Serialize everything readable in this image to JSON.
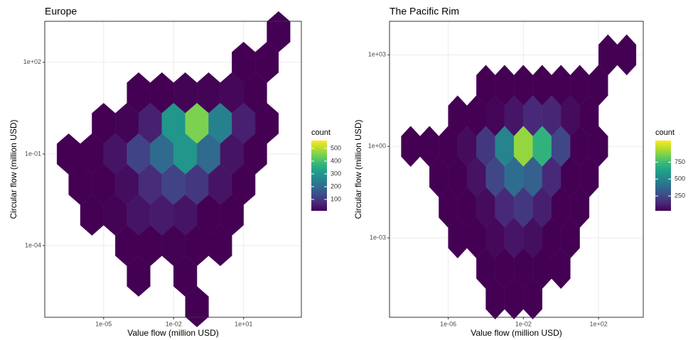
{
  "chart_data": [
    {
      "type": "hexbin",
      "title": "Europe",
      "x_label": "Value flow (million USD)",
      "y_label": "Circular flow (million USD)",
      "xscale": "log",
      "yscale": "log",
      "grid": true,
      "color_scale": "viridis",
      "xlim": [
        3e-08,
        3000
      ],
      "ylim": [
        4.5e-07,
        2200
      ],
      "xticks": [
        {
          "value": 1e-05,
          "label": "1e-05"
        },
        {
          "value": 0.01,
          "label": "1e-02"
        },
        {
          "value": 10,
          "label": "1e+01"
        }
      ],
      "yticks": [
        {
          "value": 0.0001,
          "label": "1e-04"
        },
        {
          "value": 0.1,
          "label": "1e-01"
        },
        {
          "value": 100,
          "label": "1e+02"
        }
      ],
      "legend_title": "count",
      "clim": [
        11,
        561
      ],
      "cticks": [
        100,
        200,
        300,
        400,
        500
      ],
      "x": [
        316,
        10,
        100,
        0.000316,
        0.00316,
        0.0316,
        0.316,
        3.16,
        31.6,
        1e-05,
        0.0001,
        0.001,
        0.01,
        0.1,
        1,
        10,
        100,
        3.16e-07,
        3.16e-06,
        3.16e-05,
        0.000316,
        0.00316,
        0.0316,
        0.316,
        3.16,
        31.6,
        1e-06,
        1e-05,
        0.0001,
        0.001,
        0.01,
        0.1,
        1,
        10,
        3.16e-06,
        3.16e-05,
        0.000316,
        0.00316,
        0.0316,
        0.316,
        3.16,
        0.0001,
        0.001,
        0.01,
        0.1,
        1,
        0.000316,
        0.0316,
        0.1
      ],
      "y": [
        1000,
        100,
        100,
        10,
        10,
        10,
        10,
        10,
        10,
        1,
        1,
        1,
        1,
        1,
        1,
        1,
        1,
        0.1,
        0.1,
        0.1,
        0.1,
        0.1,
        0.1,
        0.1,
        0.1,
        0.1,
        0.01,
        0.01,
        0.01,
        0.01,
        0.01,
        0.01,
        0.01,
        0.01,
        0.001,
        0.001,
        0.001,
        0.001,
        0.001,
        0.001,
        0.001,
        0.0001,
        0.0001,
        0.0001,
        0.0001,
        0.0001,
        1e-05,
        1e-05,
        1e-06
      ],
      "count": [
        2,
        5,
        3,
        5,
        10,
        15,
        15,
        20,
        10,
        3,
        15,
        60,
        300,
        450,
        250,
        60,
        5,
        2,
        10,
        40,
        120,
        200,
        300,
        200,
        40,
        3,
        3,
        10,
        30,
        80,
        120,
        100,
        40,
        3,
        3,
        15,
        40,
        50,
        40,
        10,
        2,
        3,
        10,
        12,
        8,
        2,
        1,
        2,
        1
      ]
    },
    {
      "type": "hexbin",
      "title": "The Pacific Rim",
      "x_label": "Value flow (million USD)",
      "y_label": "Circular flow (million USD)",
      "xscale": "log",
      "yscale": "log",
      "grid": true,
      "color_scale": "viridis",
      "xlim": [
        7.5e-10,
        24000
      ],
      "ylim": [
        2.5e-06,
        12600
      ],
      "xticks": [
        {
          "value": 1e-06,
          "label": "1e-06"
        },
        {
          "value": 0.01,
          "label": "1e-02"
        },
        {
          "value": 100,
          "label": "1e+02"
        }
      ],
      "yticks": [
        {
          "value": 0.001,
          "label": "1e-03"
        },
        {
          "value": 1,
          "label": "1e+00"
        },
        {
          "value": 1000,
          "label": "1e+03"
        }
      ],
      "legend_title": "count",
      "clim": [
        30,
        1070
      ],
      "cticks": [
        250,
        500,
        750
      ],
      "x": [
        316,
        3160,
        0.0001,
        0.001,
        0.01,
        0.1,
        1,
        10,
        100,
        3.16e-06,
        3.16e-05,
        0.000316,
        0.00316,
        0.0316,
        0.316,
        3.16,
        31.6,
        1e-08,
        1e-07,
        1e-06,
        1e-05,
        0.0001,
        0.001,
        0.01,
        0.1,
        1,
        10,
        100,
        3.16e-07,
        3.16e-06,
        3.16e-05,
        0.000316,
        0.00316,
        0.0316,
        0.316,
        3.16,
        31.6,
        1e-06,
        1e-05,
        0.0001,
        0.001,
        0.01,
        0.1,
        1,
        10,
        3.16e-06,
        3.16e-05,
        0.000316,
        0.00316,
        0.0316,
        0.316,
        3.16,
        0.0001,
        0.001,
        0.01,
        0.1,
        1,
        0.000316,
        0.00316,
        0.0316
      ],
      "y": [
        1000,
        1000,
        100,
        100,
        100,
        100,
        100,
        100,
        100,
        10,
        10,
        10,
        10,
        10,
        10,
        10,
        10,
        1,
        1,
        1,
        1,
        1,
        1,
        1,
        1,
        1,
        1,
        1,
        0.1,
        0.1,
        0.1,
        0.1,
        0.1,
        0.1,
        0.1,
        0.1,
        0.1,
        0.01,
        0.01,
        0.01,
        0.01,
        0.01,
        0.01,
        0.01,
        0.01,
        0.001,
        0.001,
        0.001,
        0.001,
        0.001,
        0.001,
        0.001,
        0.0001,
        0.0001,
        0.0001,
        0.0001,
        0.0001,
        1e-05,
        1e-05,
        1e-05
      ],
      "count": [
        3,
        2,
        3,
        5,
        10,
        10,
        15,
        15,
        5,
        5,
        15,
        40,
        90,
        150,
        140,
        60,
        10,
        1,
        5,
        20,
        60,
        200,
        500,
        900,
        700,
        250,
        30,
        3,
        5,
        25,
        80,
        250,
        400,
        350,
        150,
        30,
        3,
        3,
        15,
        60,
        150,
        200,
        120,
        30,
        3,
        2,
        10,
        50,
        90,
        70,
        20,
        3,
        3,
        20,
        30,
        10,
        2,
        2,
        5,
        2
      ]
    }
  ]
}
